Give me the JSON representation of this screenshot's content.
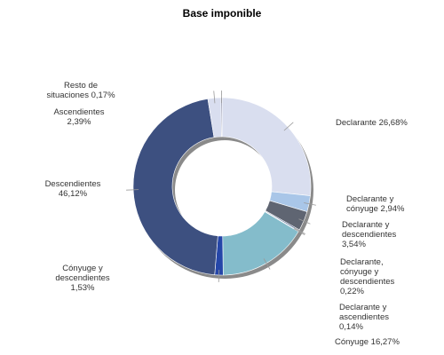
{
  "chart_data": {
    "type": "pie",
    "donut": true,
    "title": "Base imponible",
    "slices": [
      {
        "label": [
          "Declarante 26,68%"
        ],
        "value": 26.68,
        "color": "#d9deef"
      },
      {
        "label": [
          "Declarante y",
          "cónyuge 2,94%"
        ],
        "value": 2.94,
        "color": "#a9c6e8"
      },
      {
        "label": [
          "Declarante y",
          "descendientes",
          "3,54%"
        ],
        "value": 3.54,
        "color": "#5f6572"
      },
      {
        "label": [
          "Declarante,",
          "cónyuge y",
          "descendientes",
          "0,22%"
        ],
        "value": 0.22,
        "color": "#243a6e"
      },
      {
        "label": [
          "Declarante y",
          "ascendientes",
          "0,14%"
        ],
        "value": 0.14,
        "color": "#6f8fc8"
      },
      {
        "label": [
          "Cónyuge 16,27%"
        ],
        "value": 16.27,
        "color": "#84bccb"
      },
      {
        "label": [
          "Cónyuge y",
          "descendientes",
          "1,53%"
        ],
        "value": 1.53,
        "color": "#2546a8"
      },
      {
        "label": [
          "Descendientes",
          "46,12%"
        ],
        "value": 46.12,
        "color": "#3d5080"
      },
      {
        "label": [
          "Ascendientes",
          "2,39%"
        ],
        "value": 2.39,
        "color": "#d9deef"
      },
      {
        "label": [
          "Resto de",
          "situaciones 0,17%"
        ],
        "value": 0.17,
        "color": "#2a2f5a"
      }
    ]
  }
}
